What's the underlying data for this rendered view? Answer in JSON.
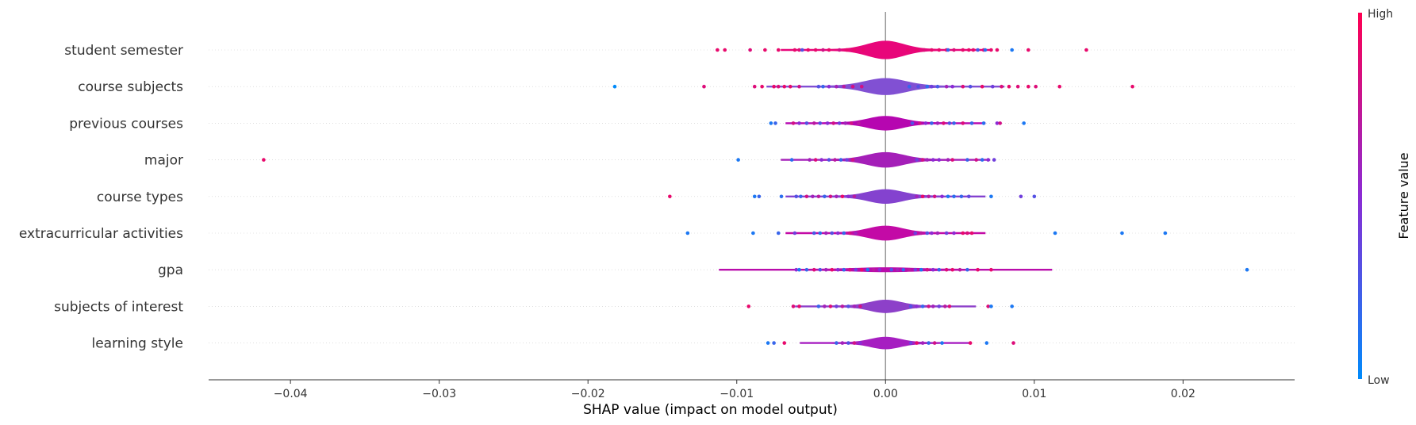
{
  "chart_data": {
    "type": "scatter",
    "subtype": "shap-violin-summary",
    "title": "",
    "xlabel": "SHAP value (impact on model output)",
    "xlim": [
      -0.0455,
      0.0275
    ],
    "x_ticks": [
      -0.04,
      -0.03,
      -0.02,
      -0.01,
      0.0,
      0.01,
      0.02
    ],
    "x_tick_labels": [
      "−0.04",
      "−0.03",
      "−0.02",
      "−0.01",
      "0.00",
      "0.01",
      "0.02"
    ],
    "grid": "dotted horizontal row lines",
    "zero_line": true,
    "colorbar": {
      "title": "Feature value",
      "high_label": "High",
      "low_label": "Low",
      "high_color": "#ff0052",
      "low_color": "#008bfb"
    },
    "features": [
      {
        "name": "student semester",
        "violin_color": "#e8067a",
        "violin_halfwidth": 0.55,
        "violin_spread": 0.0022,
        "points": [
          [
            -0.0113,
            0.9
          ],
          [
            -0.0108,
            0.9
          ],
          [
            -0.0091,
            0.85
          ],
          [
            -0.0081,
            0.9
          ],
          [
            -0.0072,
            0.9
          ],
          [
            -0.0061,
            0.9
          ],
          [
            -0.0058,
            0.85
          ],
          [
            -0.0052,
            0.9
          ],
          [
            -0.0047,
            0.9
          ],
          [
            -0.0042,
            0.8
          ],
          [
            -0.0038,
            0.9
          ],
          [
            -0.0031,
            0.8
          ],
          [
            -0.0026,
            0.9
          ],
          [
            -0.0021,
            0.9
          ],
          [
            -0.0015,
            0.9
          ],
          [
            0.0015,
            0.9
          ],
          [
            0.0021,
            0.9
          ],
          [
            0.0026,
            0.85
          ],
          [
            0.0031,
            0.9
          ],
          [
            0.0036,
            0.9
          ],
          [
            0.0041,
            0.9
          ],
          [
            0.0046,
            0.85
          ],
          [
            0.0052,
            0.9
          ],
          [
            0.0056,
            0.9
          ],
          [
            0.0059,
            0.9
          ],
          [
            0.0066,
            0.9
          ],
          [
            0.0071,
            0.9
          ],
          [
            0.0075,
            0.9
          ],
          [
            0.0085,
            0.1
          ],
          [
            0.0096,
            0.9
          ],
          [
            0.0135,
            0.9
          ],
          [
            -0.0056,
            0.3
          ],
          [
            0.0042,
            0.2
          ],
          [
            0.0062,
            0.25
          ],
          [
            0.0067,
            0.15
          ]
        ]
      },
      {
        "name": "course subjects",
        "violin_color": "#8150d3",
        "violin_halfwidth": 0.5,
        "violin_spread": 0.0025,
        "points": [
          [
            -0.0182,
            0.0
          ],
          [
            -0.0122,
            0.85
          ],
          [
            -0.0088,
            0.85
          ],
          [
            -0.0083,
            0.9
          ],
          [
            -0.0075,
            0.9
          ],
          [
            -0.0072,
            0.85
          ],
          [
            -0.0068,
            0.9
          ],
          [
            -0.0064,
            0.9
          ],
          [
            -0.0058,
            0.8
          ],
          [
            -0.0045,
            0.3
          ],
          [
            -0.0042,
            0.2
          ],
          [
            -0.0038,
            0.5
          ],
          [
            -0.0033,
            0.6
          ],
          [
            -0.0028,
            0.7
          ],
          [
            -0.0022,
            0.8
          ],
          [
            -0.0016,
            0.8
          ],
          [
            0.0016,
            0.2
          ],
          [
            0.0022,
            0.3
          ],
          [
            0.0028,
            0.15
          ],
          [
            0.0031,
            0.4
          ],
          [
            0.0035,
            0.25
          ],
          [
            0.0041,
            0.6
          ],
          [
            0.0045,
            0.5
          ],
          [
            0.0052,
            0.85
          ],
          [
            0.0057,
            0.3
          ],
          [
            0.0065,
            0.9
          ],
          [
            0.0072,
            0.4
          ],
          [
            0.0078,
            0.85
          ],
          [
            0.0083,
            0.9
          ],
          [
            0.0089,
            0.85
          ],
          [
            0.0096,
            0.9
          ],
          [
            0.0101,
            0.85
          ],
          [
            0.0117,
            0.9
          ],
          [
            0.0166,
            0.9
          ]
        ]
      },
      {
        "name": "previous courses",
        "violin_color": "#b606b0",
        "violin_halfwidth": 0.42,
        "violin_spread": 0.0021,
        "points": [
          [
            -0.0077,
            0.1
          ],
          [
            -0.0074,
            0.2
          ],
          [
            -0.0062,
            0.8
          ],
          [
            -0.0058,
            0.5
          ],
          [
            -0.0053,
            0.3
          ],
          [
            -0.0048,
            0.7
          ],
          [
            -0.0044,
            0.3
          ],
          [
            -0.0039,
            0.5
          ],
          [
            -0.0035,
            0.8
          ],
          [
            -0.0031,
            0.4
          ],
          [
            -0.0027,
            0.6
          ],
          [
            -0.0023,
            0.8
          ],
          [
            -0.0018,
            0.7
          ],
          [
            0.0018,
            0.3
          ],
          [
            0.0023,
            0.8
          ],
          [
            0.0027,
            0.5
          ],
          [
            0.0031,
            0.2
          ],
          [
            0.0035,
            0.6
          ],
          [
            0.0039,
            0.85
          ],
          [
            0.0043,
            0.3
          ],
          [
            0.0046,
            0.2
          ],
          [
            0.0052,
            0.85
          ],
          [
            0.0058,
            0.2
          ],
          [
            0.0066,
            0.15
          ],
          [
            0.0075,
            0.5
          ],
          [
            0.0077,
            0.8
          ],
          [
            0.0093,
            0.1
          ]
        ]
      },
      {
        "name": "major",
        "violin_color": "#a41fb8",
        "violin_halfwidth": 0.45,
        "violin_spread": 0.0022,
        "points": [
          [
            -0.0418,
            0.9
          ],
          [
            -0.0099,
            0.1
          ],
          [
            -0.0063,
            0.15
          ],
          [
            -0.0051,
            0.6
          ],
          [
            -0.0047,
            0.85
          ],
          [
            -0.0043,
            0.5
          ],
          [
            -0.0038,
            0.3
          ],
          [
            -0.0034,
            0.7
          ],
          [
            -0.003,
            0.2
          ],
          [
            -0.0026,
            0.4
          ],
          [
            -0.0022,
            0.8
          ],
          [
            0.0021,
            0.4
          ],
          [
            0.0025,
            0.8
          ],
          [
            0.0028,
            0.6
          ],
          [
            0.0032,
            0.5
          ],
          [
            0.0036,
            0.5
          ],
          [
            0.0042,
            0.6
          ],
          [
            0.0045,
            0.85
          ],
          [
            0.0055,
            0.2
          ],
          [
            0.0061,
            0.8
          ],
          [
            0.0065,
            0.15
          ],
          [
            0.0069,
            0.5
          ],
          [
            0.0073,
            0.4
          ]
        ]
      },
      {
        "name": "course types",
        "violin_color": "#8442cf",
        "violin_halfwidth": 0.42,
        "violin_spread": 0.0021,
        "points": [
          [
            -0.0145,
            0.9
          ],
          [
            -0.0088,
            0.1
          ],
          [
            -0.0085,
            0.2
          ],
          [
            -0.007,
            0.15
          ],
          [
            -0.006,
            0.3
          ],
          [
            -0.0057,
            0.2
          ],
          [
            -0.0053,
            0.8
          ],
          [
            -0.0049,
            0.6
          ],
          [
            -0.0045,
            0.7
          ],
          [
            -0.0041,
            0.2
          ],
          [
            -0.0037,
            0.8
          ],
          [
            -0.0033,
            0.6
          ],
          [
            -0.0029,
            0.9
          ],
          [
            -0.0025,
            0.5
          ],
          [
            -0.0021,
            0.7
          ],
          [
            0.0021,
            0.6
          ],
          [
            0.0025,
            0.9
          ],
          [
            0.0029,
            0.7
          ],
          [
            0.0033,
            0.8
          ],
          [
            0.0038,
            0.5
          ],
          [
            0.0042,
            0.1
          ],
          [
            0.0046,
            0.15
          ],
          [
            0.0051,
            0.2
          ],
          [
            0.0056,
            0.35
          ],
          [
            0.0071,
            0.1
          ],
          [
            0.0091,
            0.4
          ],
          [
            0.01,
            0.3
          ]
        ]
      },
      {
        "name": "extracurricular activities",
        "violin_color": "#c30aa6",
        "violin_halfwidth": 0.43,
        "violin_spread": 0.0021,
        "points": [
          [
            -0.0133,
            0.1
          ],
          [
            -0.0089,
            0.1
          ],
          [
            -0.0072,
            0.2
          ],
          [
            -0.0061,
            0.4
          ],
          [
            -0.0048,
            0.25
          ],
          [
            -0.0044,
            0.15
          ],
          [
            -0.004,
            0.6
          ],
          [
            -0.0036,
            0.3
          ],
          [
            -0.0032,
            0.5
          ],
          [
            -0.0028,
            0.2
          ],
          [
            -0.0024,
            0.8
          ],
          [
            -0.002,
            0.6
          ],
          [
            0.002,
            0.4
          ],
          [
            0.0024,
            0.7
          ],
          [
            0.0028,
            0.3
          ],
          [
            0.0031,
            0.5
          ],
          [
            0.0035,
            0.6
          ],
          [
            0.0041,
            0.4
          ],
          [
            0.0046,
            0.5
          ],
          [
            0.0052,
            0.9
          ],
          [
            0.0055,
            0.85
          ],
          [
            0.0058,
            0.9
          ],
          [
            0.0114,
            0.1
          ],
          [
            0.0159,
            0.1
          ],
          [
            0.0188,
            0.1
          ]
        ]
      },
      {
        "name": "gpa",
        "violin_color": "#b90cab",
        "violin_halfwidth": 0.1,
        "violin_spread": 0.0035,
        "points": [
          [
            -0.006,
            0.5
          ],
          [
            -0.0058,
            0.1
          ],
          [
            -0.0053,
            0.2
          ],
          [
            -0.0048,
            0.85
          ],
          [
            -0.0044,
            0.3
          ],
          [
            -0.004,
            0.6
          ],
          [
            -0.0036,
            0.9
          ],
          [
            -0.0032,
            0.5
          ],
          [
            -0.0028,
            0.2
          ],
          [
            -0.0024,
            0.8
          ],
          [
            -0.002,
            0.4
          ],
          [
            -0.0016,
            0.9
          ],
          [
            -0.0012,
            0.1
          ],
          [
            -0.0008,
            0.7
          ],
          [
            -0.0004,
            0.5
          ],
          [
            0.0004,
            0.3
          ],
          [
            0.0008,
            0.6
          ],
          [
            0.0012,
            0.2
          ],
          [
            0.0016,
            0.7
          ],
          [
            0.002,
            0.4
          ],
          [
            0.0024,
            0.1
          ],
          [
            0.0028,
            0.8
          ],
          [
            0.0032,
            0.5
          ],
          [
            0.0036,
            0.2
          ],
          [
            0.0041,
            0.85
          ],
          [
            0.0045,
            0.9
          ],
          [
            0.005,
            0.7
          ],
          [
            0.0055,
            0.2
          ],
          [
            0.0062,
            0.9
          ],
          [
            0.0071,
            0.9
          ],
          [
            0.0243,
            0.1
          ]
        ]
      },
      {
        "name": "subjects of interest",
        "violin_color": "#8d40c9",
        "violin_halfwidth": 0.38,
        "violin_spread": 0.0019,
        "points": [
          [
            -0.0092,
            0.9
          ],
          [
            -0.0062,
            0.85
          ],
          [
            -0.0058,
            0.9
          ],
          [
            -0.0045,
            0.2
          ],
          [
            -0.0041,
            0.6
          ],
          [
            -0.0037,
            0.85
          ],
          [
            -0.0033,
            0.4
          ],
          [
            -0.0029,
            0.7
          ],
          [
            -0.0025,
            0.3
          ],
          [
            -0.0021,
            0.6
          ],
          [
            -0.0017,
            0.8
          ],
          [
            0.0017,
            0.3
          ],
          [
            0.0021,
            0.5
          ],
          [
            0.0025,
            0.2
          ],
          [
            0.0029,
            0.8
          ],
          [
            0.0032,
            0.6
          ],
          [
            0.0036,
            0.4
          ],
          [
            0.004,
            0.7
          ],
          [
            0.0043,
            0.85
          ],
          [
            0.0069,
            0.85
          ],
          [
            0.0071,
            0.1
          ],
          [
            0.0085,
            0.1
          ]
        ]
      },
      {
        "name": "learning style",
        "violin_color": "#a61ec1",
        "violin_halfwidth": 0.35,
        "violin_spread": 0.0018,
        "points": [
          [
            -0.0079,
            0.1
          ],
          [
            -0.0075,
            0.2
          ],
          [
            -0.0068,
            0.9
          ],
          [
            -0.0033,
            0.2
          ],
          [
            -0.0029,
            0.6
          ],
          [
            -0.0025,
            0.3
          ],
          [
            -0.0021,
            0.8
          ],
          [
            -0.0017,
            0.5
          ],
          [
            0.0017,
            0.4
          ],
          [
            0.0021,
            0.9
          ],
          [
            0.0025,
            0.6
          ],
          [
            0.0029,
            0.2
          ],
          [
            0.0033,
            0.8
          ],
          [
            0.0038,
            0.1
          ],
          [
            0.0057,
            0.9
          ],
          [
            0.0068,
            0.1
          ],
          [
            0.0086,
            0.85
          ]
        ]
      }
    ]
  }
}
